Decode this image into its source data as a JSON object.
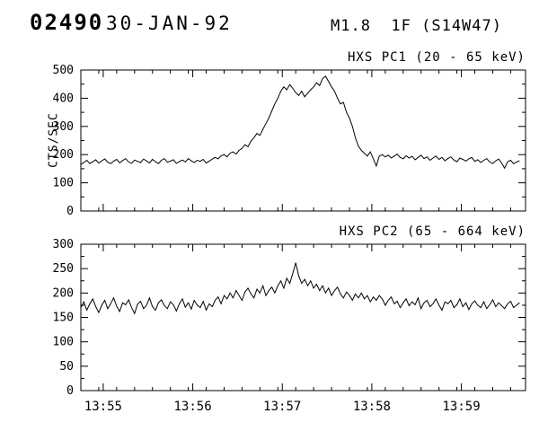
{
  "header": {
    "event_number": "02490",
    "date": "30-JAN-92",
    "flare_class": "M1.8  1F (S14W47)"
  },
  "chart_data": [
    {
      "type": "line",
      "title": "HXS PC1 (20 - 65 keV)",
      "ylabel": "CTS/SEC",
      "ylim": [
        0,
        500
      ],
      "yticks": [
        0,
        100,
        200,
        300,
        400,
        500
      ],
      "y_minor_step": 50,
      "xlim": [
        0,
        298
      ],
      "xticks": [
        {
          "pos": 15,
          "label": "13:55"
        },
        {
          "pos": 75,
          "label": "13:56"
        },
        {
          "pos": 135,
          "label": "13:57"
        },
        {
          "pos": 195,
          "label": "13:58"
        },
        {
          "pos": 255,
          "label": "13:59"
        }
      ],
      "x_minor_step": 12,
      "show_x_labels": false,
      "x_start_seconds": 0,
      "x_step_seconds": 2,
      "values": [
        165,
        172,
        180,
        168,
        175,
        182,
        170,
        178,
        185,
        173,
        168,
        177,
        183,
        171,
        179,
        186,
        174,
        169,
        181,
        176,
        172,
        184,
        178,
        170,
        183,
        175,
        168,
        180,
        186,
        173,
        177,
        182,
        169,
        175,
        181,
        174,
        186,
        178,
        172,
        180,
        176,
        183,
        170,
        177,
        184,
        190,
        185,
        196,
        200,
        192,
        205,
        210,
        202,
        215,
        222,
        235,
        228,
        248,
        260,
        275,
        268,
        290,
        310,
        330,
        355,
        380,
        400,
        425,
        440,
        430,
        448,
        435,
        420,
        410,
        425,
        405,
        418,
        430,
        440,
        455,
        445,
        470,
        478,
        460,
        440,
        425,
        400,
        380,
        385,
        350,
        330,
        300,
        260,
        230,
        215,
        205,
        195,
        210,
        185,
        160,
        195,
        200,
        192,
        198,
        188,
        195,
        202,
        190,
        185,
        196,
        188,
        194,
        182,
        190,
        198,
        186,
        192,
        180,
        188,
        195,
        183,
        190,
        178,
        186,
        192,
        181,
        175,
        188,
        183,
        177,
        185,
        190,
        176,
        182,
        172,
        180,
        186,
        174,
        168,
        178,
        184,
        170,
        152,
        175,
        180,
        168,
        174,
        178
      ]
    },
    {
      "type": "line",
      "title": "HXS PC2 (65 - 664 keV)",
      "ylabel": "",
      "ylim": [
        0,
        300
      ],
      "yticks": [
        0,
        50,
        100,
        150,
        200,
        250,
        300
      ],
      "y_minor_step": 25,
      "xlim": [
        0,
        298
      ],
      "xticks": [
        {
          "pos": 15,
          "label": "13:55"
        },
        {
          "pos": 75,
          "label": "13:56"
        },
        {
          "pos": 135,
          "label": "13:57"
        },
        {
          "pos": 195,
          "label": "13:58"
        },
        {
          "pos": 255,
          "label": "13:59"
        }
      ],
      "x_minor_step": 12,
      "show_x_labels": true,
      "x_start_seconds": 0,
      "x_step_seconds": 2,
      "values": [
        170,
        182,
        165,
        178,
        188,
        172,
        160,
        175,
        185,
        168,
        178,
        190,
        173,
        162,
        180,
        176,
        186,
        170,
        158,
        177,
        183,
        168,
        175,
        190,
        172,
        165,
        180,
        186,
        174,
        168,
        182,
        176,
        163,
        178,
        188,
        171,
        180,
        167,
        185,
        175,
        170,
        183,
        165,
        178,
        172,
        185,
        192,
        178,
        195,
        188,
        200,
        190,
        205,
        195,
        185,
        202,
        210,
        198,
        190,
        208,
        200,
        215,
        195,
        205,
        212,
        200,
        215,
        225,
        210,
        230,
        220,
        240,
        262,
        235,
        220,
        228,
        215,
        225,
        210,
        218,
        205,
        215,
        200,
        210,
        195,
        205,
        212,
        198,
        190,
        202,
        195,
        185,
        198,
        190,
        200,
        188,
        195,
        182,
        192,
        185,
        195,
        188,
        175,
        185,
        192,
        178,
        183,
        170,
        180,
        188,
        174,
        182,
        176,
        190,
        168,
        180,
        185,
        172,
        178,
        188,
        175,
        165,
        182,
        178,
        185,
        170,
        176,
        188,
        172,
        180,
        166,
        178,
        184,
        175,
        170,
        182,
        168,
        176,
        186,
        172,
        180,
        174,
        168,
        178,
        183,
        170,
        175,
        180
      ]
    }
  ]
}
